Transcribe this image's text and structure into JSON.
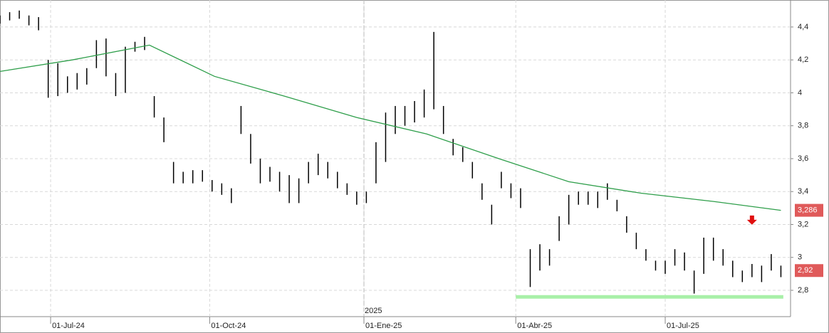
{
  "chart_data": {
    "type": "ohlc",
    "xlim": [
      0,
      328
    ],
    "ylim": [
      2.64,
      4.564
    ],
    "xticks": [
      {
        "value": 21,
        "label": "01-Jul-24"
      },
      {
        "value": 87,
        "label": "01-Oct-24"
      },
      {
        "value": 151,
        "label": "01-Ene-25"
      },
      {
        "value": 214,
        "label": "01-Abr-25"
      },
      {
        "value": 276,
        "label": "01-Jul-25"
      }
    ],
    "yticks": [
      {
        "value": 2.8,
        "label": "2,8"
      },
      3,
      {
        "value": 3.2,
        "label": "3,2"
      },
      {
        "value": 3.4,
        "label": "3,4"
      },
      {
        "value": 3.6,
        "label": "3,6"
      },
      {
        "value": 3.8,
        "label": "3,8"
      },
      4,
      {
        "value": 4.2,
        "label": "4,2"
      },
      {
        "value": 4.4,
        "label": "4,4"
      }
    ],
    "grid": true,
    "year_labels": [
      {
        "value": 151,
        "label": "2025"
      }
    ],
    "bars": {
      "color": "#000000",
      "x": [
        0,
        4,
        8,
        12,
        16,
        20,
        24,
        28,
        32,
        36,
        40,
        44,
        48,
        52,
        56,
        60,
        64,
        68,
        72,
        76,
        80,
        84,
        88,
        92,
        96,
        100,
        104,
        108,
        112,
        116,
        120,
        124,
        128,
        132,
        136,
        140,
        144,
        148,
        152,
        156,
        160,
        164,
        168,
        172,
        176,
        180,
        184,
        188,
        192,
        196,
        200,
        204,
        208,
        212,
        216,
        220,
        224,
        228,
        232,
        236,
        240,
        244,
        248,
        252,
        256,
        260,
        264,
        268,
        272,
        276,
        280,
        284,
        288,
        292,
        296,
        300,
        304,
        308,
        312,
        316,
        320,
        324
      ],
      "high": [
        4.47,
        4.49,
        4.5,
        4.47,
        4.46,
        4.2,
        4.18,
        4.1,
        4.12,
        4.15,
        4.32,
        4.33,
        4.12,
        4.28,
        4.31,
        4.34,
        3.98,
        3.85,
        3.58,
        3.52,
        3.53,
        3.53,
        3.47,
        3.45,
        3.42,
        3.92,
        3.75,
        3.6,
        3.55,
        3.52,
        3.5,
        3.48,
        3.58,
        3.63,
        3.58,
        3.52,
        3.45,
        3.4,
        3.4,
        3.7,
        3.88,
        3.92,
        3.92,
        3.95,
        4.02,
        4.37,
        3.92,
        3.72,
        3.67,
        3.58,
        3.45,
        3.32,
        3.52,
        3.45,
        3.42,
        3.05,
        3.08,
        3.05,
        3.25,
        3.38,
        3.4,
        3.4,
        3.4,
        3.45,
        3.35,
        3.25,
        3.15,
        3.05,
        2.98,
        2.98,
        3.05,
        3.03,
        2.92,
        3.12,
        3.12,
        3.05,
        2.98,
        2.92,
        2.96,
        2.95,
        3.02,
        2.95
      ],
      "low": [
        4.42,
        4.44,
        4.45,
        4.41,
        4.38,
        3.97,
        3.98,
        4.0,
        4.02,
        4.05,
        4.15,
        4.1,
        3.98,
        4.0,
        4.25,
        4.26,
        3.85,
        3.7,
        3.45,
        3.45,
        3.45,
        3.46,
        3.4,
        3.38,
        3.33,
        3.75,
        3.57,
        3.45,
        3.46,
        3.4,
        3.33,
        3.33,
        3.45,
        3.5,
        3.48,
        3.42,
        3.38,
        3.32,
        3.33,
        3.45,
        3.58,
        3.75,
        3.8,
        3.82,
        3.85,
        3.9,
        3.75,
        3.62,
        3.58,
        3.48,
        3.35,
        3.2,
        3.42,
        3.36,
        3.3,
        2.82,
        2.92,
        2.95,
        3.1,
        3.2,
        3.32,
        3.32,
        3.3,
        3.35,
        3.28,
        3.15,
        3.05,
        2.98,
        2.92,
        2.9,
        2.95,
        2.92,
        2.78,
        2.9,
        2.98,
        2.95,
        2.88,
        2.85,
        2.88,
        2.85,
        2.92,
        2.88
      ]
    },
    "ma": {
      "color": "#2e9e4a",
      "x": [
        0,
        30,
        62,
        89,
        118,
        148,
        177,
        207,
        236,
        266,
        296,
        324
      ],
      "values": [
        4.13,
        4.2,
        4.29,
        4.1,
        3.98,
        3.85,
        3.75,
        3.6,
        3.46,
        3.39,
        3.34,
        3.286
      ]
    },
    "support": {
      "color": "#a8f0a8",
      "x": [
        214,
        325
      ],
      "value": 2.76
    },
    "arrow": {
      "color": "#e01010",
      "x": 312,
      "value": 3.22
    },
    "markers": [
      {
        "value": 3.286,
        "label": "3,286",
        "color": "#e05a5a"
      },
      {
        "value": 2.92,
        "label": "2,92",
        "color": "#e05a5a"
      }
    ]
  }
}
